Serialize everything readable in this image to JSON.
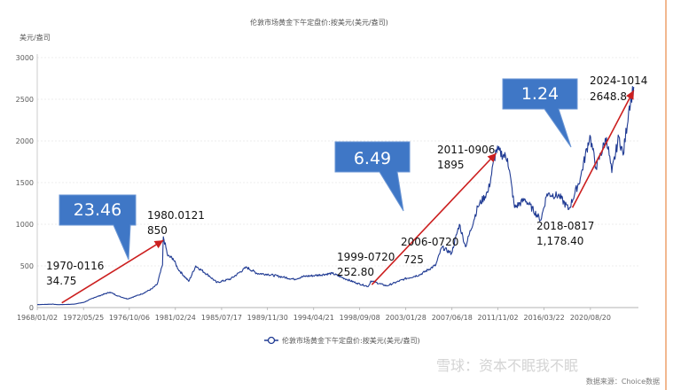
{
  "chart_data": {
    "type": "line",
    "title": "伦敦市场黄金下午定盘价:按美元(美元/盎司)",
    "ylabel": "美元/盎司",
    "ylim": [
      0,
      3000
    ],
    "y_ticks": [
      "0",
      "500",
      "1000",
      "1500",
      "2000",
      "2500",
      "3000"
    ],
    "x_ticks": [
      "1968/01/02",
      "1972/05/25",
      "1976/10/06",
      "1981/02/24",
      "1985/07/17",
      "1989/11/30",
      "1994/04/21",
      "1998/09/08",
      "2003/01/28",
      "2007/06/18",
      "2011/11/02",
      "2016/03/22",
      "2020/08/20"
    ],
    "legend": "伦敦市场黄金下午定盘价:按美元(美元/盎司)",
    "legend_position": "bottom",
    "series": [
      {
        "name": "伦敦市场黄金下午定盘价:按美元(美元/盎司)",
        "color": "#1f3a93",
        "points": [
          [
            "1968-01",
            35
          ],
          [
            "1969-06",
            41
          ],
          [
            "1970-01",
            34.75
          ],
          [
            "1971-06",
            40
          ],
          [
            "1972-06",
            62
          ],
          [
            "1973-06",
            120
          ],
          [
            "1974-12",
            185
          ],
          [
            "1975-09",
            140
          ],
          [
            "1976-08",
            104
          ],
          [
            "1977-12",
            162
          ],
          [
            "1978-12",
            226
          ],
          [
            "1979-06",
            280
          ],
          [
            "1979-12",
            512
          ],
          [
            "1980-01",
            850
          ],
          [
            "1980-06",
            620
          ],
          [
            "1980-12",
            590
          ],
          [
            "1981-06",
            460
          ],
          [
            "1982-06",
            315
          ],
          [
            "1983-02",
            500
          ],
          [
            "1984-06",
            375
          ],
          [
            "1985-02",
            300
          ],
          [
            "1986-06",
            345
          ],
          [
            "1987-12",
            484
          ],
          [
            "1988-12",
            410
          ],
          [
            "1989-12",
            400
          ],
          [
            "1991-06",
            365
          ],
          [
            "1992-06",
            340
          ],
          [
            "1993-06",
            375
          ],
          [
            "1994-06",
            385
          ],
          [
            "1996-02",
            410
          ],
          [
            "1997-06",
            340
          ],
          [
            "1998-06",
            293
          ],
          [
            "1999-07",
            252.8
          ],
          [
            "1999-10",
            320
          ],
          [
            "2001-04",
            260
          ],
          [
            "2002-12",
            342
          ],
          [
            "2004-06",
            395
          ],
          [
            "2005-12",
            510
          ],
          [
            "2006-07",
            725
          ],
          [
            "2007-06",
            650
          ],
          [
            "2008-03",
            1000
          ],
          [
            "2008-10",
            730
          ],
          [
            "2009-12",
            1210
          ],
          [
            "2010-12",
            1400
          ],
          [
            "2011-09",
            1895
          ],
          [
            "2012-10",
            1790
          ],
          [
            "2013-06",
            1200
          ],
          [
            "2014-06",
            1300
          ],
          [
            "2015-12",
            1050
          ],
          [
            "2016-07",
            1365
          ],
          [
            "2017-09",
            1340
          ],
          [
            "2018-08",
            1178.4
          ],
          [
            "2019-09",
            1550
          ],
          [
            "2020-08",
            2067
          ],
          [
            "2021-03",
            1680
          ],
          [
            "2022-03",
            2040
          ],
          [
            "2022-09",
            1620
          ],
          [
            "2023-05",
            2050
          ],
          [
            "2023-10",
            1830
          ],
          [
            "2024-05",
            2420
          ],
          [
            "2024-10",
            2648.8
          ]
        ]
      }
    ],
    "annotations": [
      {
        "date": "1970-0116",
        "value": "34.75"
      },
      {
        "date": "1980.0121",
        "value": "850"
      },
      {
        "date": "1999-0720",
        "value": "252.80"
      },
      {
        "date": "2006-0720",
        "value": "725"
      },
      {
        "date": "2011-0906",
        "value": "1895"
      },
      {
        "date": "2018-0817",
        "value": "1,178.40"
      },
      {
        "date": "2024-1014",
        "value": "2648.8"
      }
    ],
    "callouts": [
      "23.46",
      "6.49",
      "1.24"
    ],
    "colors": {
      "line": "#1f3a93",
      "arrow": "#cc1f1f",
      "callout_fill": "#3f77c6",
      "callout_border": "#6a95d4"
    }
  },
  "watermark": "雪球：资本不眠我不眠",
  "source": "数据来源：Choice数据"
}
